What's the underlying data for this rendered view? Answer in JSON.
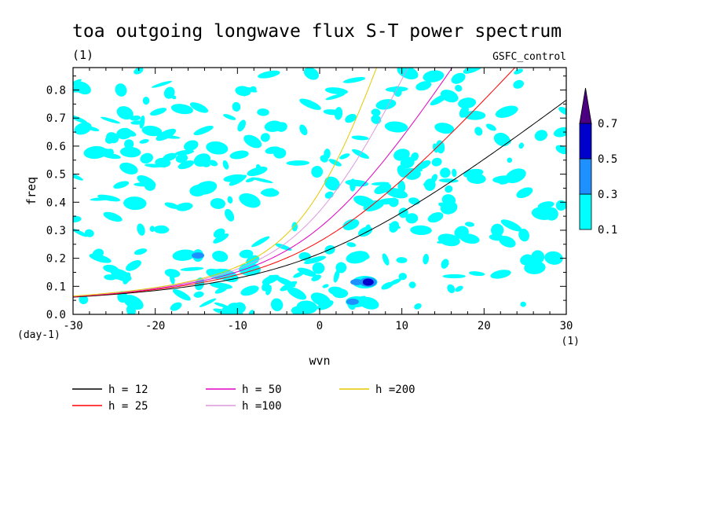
{
  "chart_data": {
    "type": "heatmap",
    "title": "toa outgoing longwave flux S-T power spectrum",
    "units_label": "(1)",
    "experiment_label": "GSFC_control",
    "xlabel": "wvn",
    "ylabel": "freq",
    "x_units": "(1)",
    "y_units": "(day-1)",
    "xlim": [
      -30,
      30
    ],
    "ylim": [
      0,
      0.88
    ],
    "x_ticks": [
      "-30",
      "-20",
      "-10",
      "0",
      "10",
      "20",
      "30"
    ],
    "y_ticks": [
      "0.0",
      "0.1",
      "0.2",
      "0.3",
      "0.4",
      "0.5",
      "0.6",
      "0.7",
      "0.8"
    ],
    "colorbar": {
      "levels": [
        "0.1",
        "0.3",
        "0.5",
        "0.7"
      ],
      "colors": [
        "#00ffff",
        "#1e90ff",
        "#0000cd",
        "#4b0082"
      ]
    },
    "field": {
      "background_level": "<0.1",
      "peaks": [
        {
          "x": 5.9,
          "y": 0.115,
          "value": 0.6
        },
        {
          "x": 4.0,
          "y": 0.045,
          "value": 0.35
        },
        {
          "x": 4.5,
          "y": 0.115,
          "value": 0.35
        },
        {
          "x": -14.8,
          "y": 0.21,
          "value": 0.35
        }
      ]
    },
    "series": [
      {
        "name": "h = 12",
        "color": "#000000",
        "h": 12
      },
      {
        "name": "h = 25",
        "color": "#ff0000",
        "h": 25
      },
      {
        "name": "h = 50",
        "color": "#e000c0",
        "h": 50
      },
      {
        "name": "h =100",
        "color": "#dd99dd",
        "h": 100
      },
      {
        "name": "h =200",
        "color": "#e6c800",
        "h": 200
      }
    ],
    "legend": "bottom",
    "grid": false
  }
}
